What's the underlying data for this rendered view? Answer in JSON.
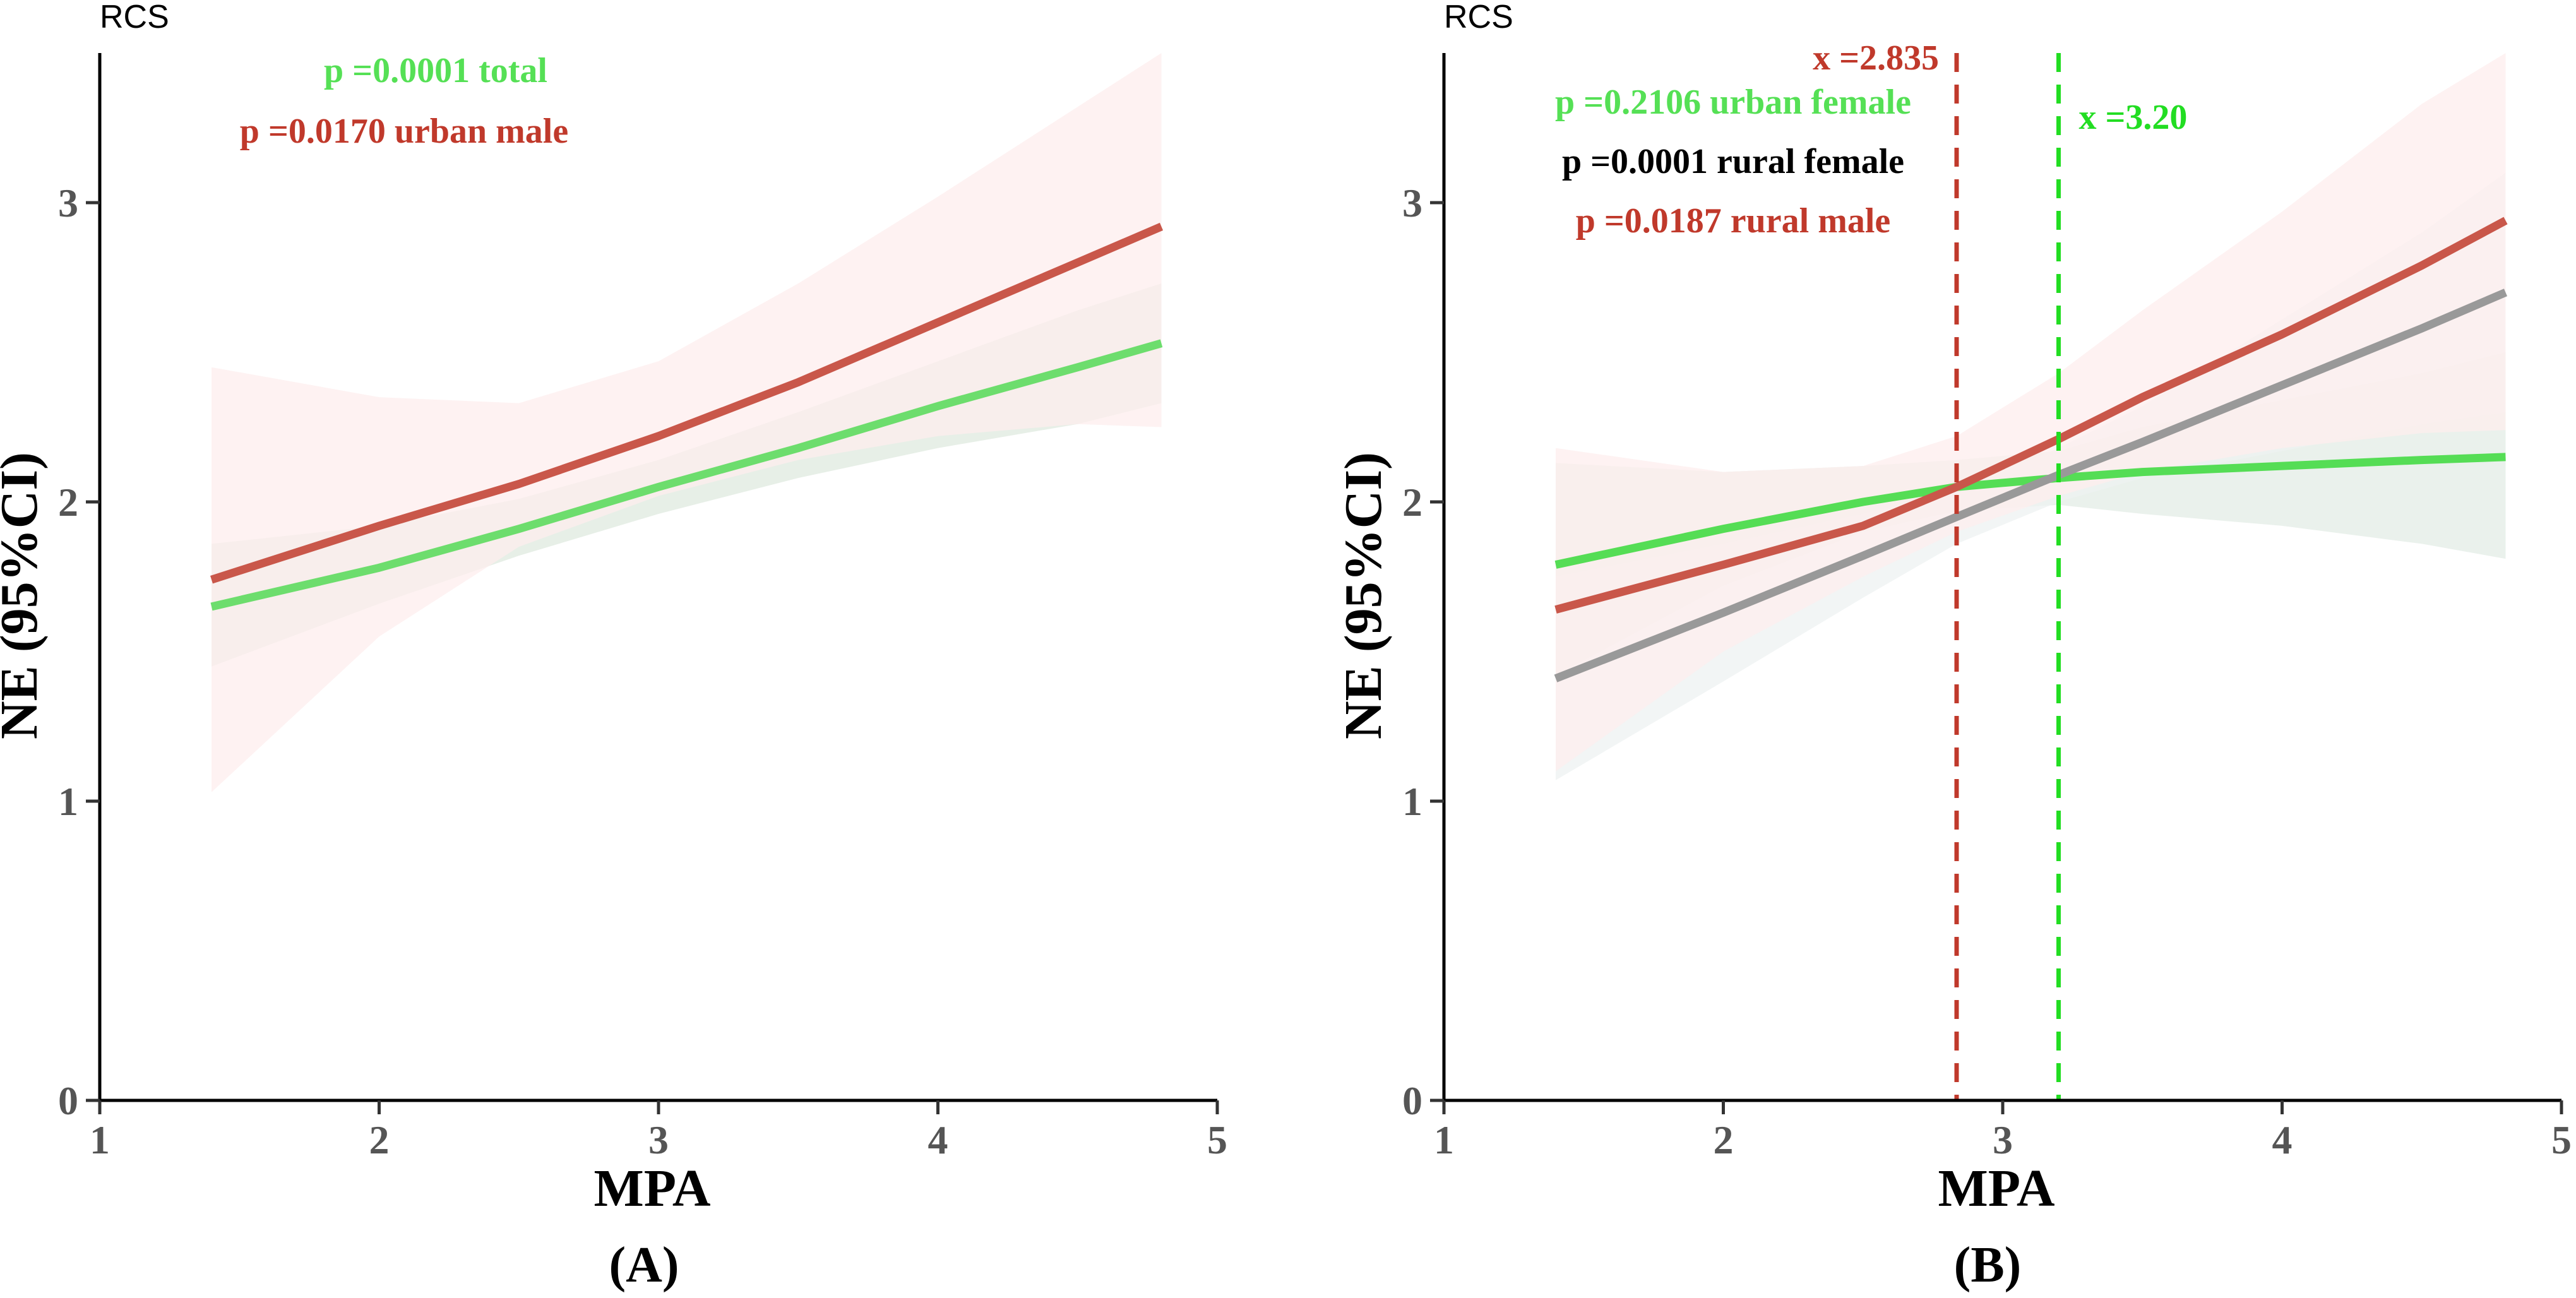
{
  "chart_data": [
    {
      "type": "line",
      "corner_label": "RCS",
      "panel_label": "(A)",
      "xlabel": "MPA",
      "ylabel": "NE (95%CI)",
      "xlim": [
        1,
        5
      ],
      "ylim": [
        0,
        3.5
      ],
      "xticks": [
        "1",
        "2",
        "3",
        "4",
        "5"
      ],
      "yticks": [
        "0",
        "1",
        "2",
        "3"
      ],
      "annotations": [
        {
          "text": "p =0.0001 total",
          "color": "#55e055"
        },
        {
          "text": "p =0.0170 urban male",
          "color": "#c0392b"
        }
      ],
      "series": [
        {
          "name": "total",
          "color": "#6ddd6d",
          "band_color": "#dfe9df",
          "x": [
            1.4,
            2.0,
            2.5,
            3.0,
            3.5,
            4.0,
            4.5,
            4.8
          ],
          "y": [
            1.65,
            1.78,
            1.91,
            2.05,
            2.18,
            2.32,
            2.45,
            2.53
          ],
          "lower": [
            1.45,
            1.66,
            1.82,
            1.96,
            2.08,
            2.18,
            2.26,
            2.33
          ],
          "upper": [
            1.86,
            1.92,
            2.01,
            2.14,
            2.3,
            2.47,
            2.64,
            2.73
          ]
        },
        {
          "name": "urban male",
          "color": "#c9574a",
          "band_color": "#fdeeee",
          "x": [
            1.4,
            2.0,
            2.5,
            3.0,
            3.5,
            4.0,
            4.5,
            4.8
          ],
          "y": [
            1.74,
            1.92,
            2.06,
            2.22,
            2.4,
            2.6,
            2.8,
            2.92
          ],
          "lower": [
            1.03,
            1.55,
            1.85,
            2.02,
            2.14,
            2.22,
            2.26,
            2.25
          ],
          "upper": [
            2.45,
            2.35,
            2.33,
            2.47,
            2.73,
            3.02,
            3.32,
            3.5
          ]
        }
      ],
      "ref_lines": []
    },
    {
      "type": "line",
      "corner_label": "RCS",
      "panel_label": "(B)",
      "xlabel": "MPA",
      "ylabel": "NE (95%CI)",
      "xlim": [
        1,
        5
      ],
      "ylim": [
        0,
        3.5
      ],
      "xticks": [
        "1",
        "2",
        "3",
        "4",
        "5"
      ],
      "yticks": [
        "0",
        "1",
        "2",
        "3"
      ],
      "annotations": [
        {
          "text": "p =0.2106  urban female",
          "color": "#55e055"
        },
        {
          "text": "p =0.0001  rural female",
          "color": "#000000"
        },
        {
          "text": "p =0.0187  rural male",
          "color": "#c0392b"
        }
      ],
      "series": [
        {
          "name": "urban female",
          "color": "#55dd55",
          "band_color": "#e3ece6",
          "x": [
            1.4,
            2.0,
            2.5,
            2.835,
            3.2,
            3.5,
            4.0,
            4.5,
            4.8
          ],
          "y": [
            1.79,
            1.91,
            2.0,
            2.05,
            2.08,
            2.1,
            2.12,
            2.14,
            2.15
          ],
          "lower": [
            1.42,
            1.72,
            1.9,
            1.97,
            1.99,
            1.96,
            1.92,
            1.86,
            1.81
          ],
          "upper": [
            2.13,
            2.1,
            2.12,
            2.14,
            2.17,
            2.25,
            2.34,
            2.43,
            2.5
          ]
        },
        {
          "name": "rural female",
          "color": "#999999",
          "band_color": "#eef2f2",
          "x": [
            1.4,
            2.0,
            2.5,
            2.835,
            3.2,
            3.5,
            4.0,
            4.5,
            4.8
          ],
          "y": [
            1.41,
            1.63,
            1.82,
            1.95,
            2.09,
            2.2,
            2.39,
            2.58,
            2.7
          ],
          "lower": [
            1.07,
            1.4,
            1.68,
            1.86,
            2.0,
            2.08,
            2.17,
            2.26,
            2.3
          ],
          "upper": [
            1.75,
            1.86,
            1.96,
            2.04,
            2.18,
            2.32,
            2.61,
            2.9,
            3.1
          ]
        },
        {
          "name": "rural male",
          "color": "#c9574a",
          "band_color": "#fdeeee",
          "x": [
            1.4,
            2.0,
            2.5,
            2.835,
            3.2,
            3.5,
            4.0,
            4.5,
            4.8
          ],
          "y": [
            1.64,
            1.79,
            1.92,
            2.05,
            2.21,
            2.35,
            2.56,
            2.79,
            2.94
          ],
          "lower": [
            1.1,
            1.5,
            1.75,
            1.9,
            2.02,
            2.1,
            2.18,
            2.23,
            2.24
          ],
          "upper": [
            2.18,
            2.1,
            2.12,
            2.22,
            2.43,
            2.64,
            2.97,
            3.33,
            3.5
          ]
        }
      ],
      "ref_lines": [
        {
          "x": 2.835,
          "label": "x =2.835",
          "color": "#c0392b"
        },
        {
          "x": 3.2,
          "label": "x =3.20",
          "color": "#22dd22"
        }
      ]
    }
  ]
}
